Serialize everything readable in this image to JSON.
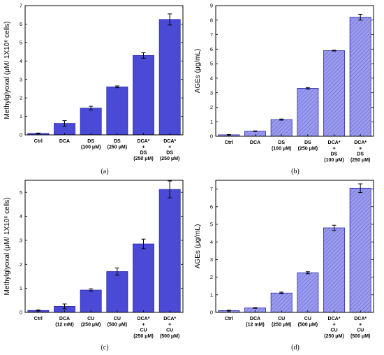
{
  "chart_data": [
    {
      "type": "bar",
      "panel_label": "(a)",
      "ylabel": "Methylglyoxal (μM/ 1X10⁶ cells)",
      "ylim": [
        0,
        7
      ],
      "yticks": [
        0,
        1,
        2,
        3,
        4,
        5,
        6,
        7
      ],
      "categories": [
        [
          "Ctrl"
        ],
        [
          "DCA"
        ],
        [
          "DS",
          "(100 μM)"
        ],
        [
          "DS",
          "(250 μM)"
        ],
        [
          "DCA*",
          "+",
          "DS",
          "(250 μM)"
        ],
        [
          "DCA*",
          "+",
          "DS",
          "(250 μM)"
        ]
      ],
      "values": [
        0.08,
        0.62,
        1.45,
        2.6,
        4.3,
        6.25
      ],
      "errors": [
        0.02,
        0.15,
        0.1,
        0.05,
        0.15,
        0.3
      ],
      "bar_color": "#4a4ad6",
      "hatched": false
    },
    {
      "type": "bar",
      "panel_label": "(b)",
      "ylabel": "AGEs (μg/mL)",
      "ylim": [
        0,
        9
      ],
      "yticks": [
        0,
        1,
        2,
        3,
        4,
        5,
        6,
        7,
        8,
        9
      ],
      "categories": [
        [
          "Ctrl"
        ],
        [
          "DCA"
        ],
        [
          "DS",
          "(100 μM)"
        ],
        [
          "DS",
          "(250 μM)"
        ],
        [
          "DCA*",
          "+",
          "DS",
          "(100 μM)"
        ],
        [
          "DCA*",
          "+",
          "DS",
          "(250 μM)"
        ]
      ],
      "values": [
        0.1,
        0.35,
        1.15,
        3.3,
        5.9,
        8.2
      ],
      "errors": [
        0.02,
        0.02,
        0.04,
        0.05,
        0.03,
        0.2
      ],
      "bar_color": "#8c8ce8",
      "hatched": true
    },
    {
      "type": "bar",
      "panel_label": "(c)",
      "ylabel": "Methylglyoxal (μM/ 1X10⁶ cells)",
      "ylim": [
        0,
        5.5
      ],
      "yticks": [
        0,
        1,
        2,
        3,
        4,
        5
      ],
      "categories": [
        [
          "Ctrl"
        ],
        [
          "DCA",
          "(12 mM)"
        ],
        [
          "CU",
          "(250 μM)"
        ],
        [
          "CU",
          "(500 μM)"
        ],
        [
          "DCA*",
          "+",
          "CU",
          "(250 μM)"
        ],
        [
          "DCA*",
          "+",
          "CU",
          "(500 μM)"
        ]
      ],
      "values": [
        0.08,
        0.25,
        0.93,
        1.7,
        2.85,
        5.12
      ],
      "errors": [
        0.02,
        0.1,
        0.05,
        0.15,
        0.2,
        0.35
      ],
      "bar_color": "#4a4ad6",
      "hatched": false
    },
    {
      "type": "bar",
      "panel_label": "(d)",
      "ylabel": "AGEs (μg/mL)",
      "ylim": [
        0,
        7.5
      ],
      "yticks": [
        0,
        1,
        2,
        3,
        4,
        5,
        6,
        7
      ],
      "categories": [
        [
          "Ctrl"
        ],
        [
          "DCA",
          "(12 mM)"
        ],
        [
          "CU",
          "(250 μM)"
        ],
        [
          "CU",
          "(500 μM)"
        ],
        [
          "DCA*",
          "+",
          "CU",
          "(250 μM)"
        ],
        [
          "DCA*",
          "+",
          "CU",
          "(500 μM)"
        ]
      ],
      "values": [
        0.1,
        0.25,
        1.1,
        2.25,
        4.8,
        7.05
      ],
      "errors": [
        0.02,
        0.02,
        0.05,
        0.06,
        0.15,
        0.25
      ],
      "bar_color": "#8c8ce8",
      "hatched": true
    }
  ]
}
